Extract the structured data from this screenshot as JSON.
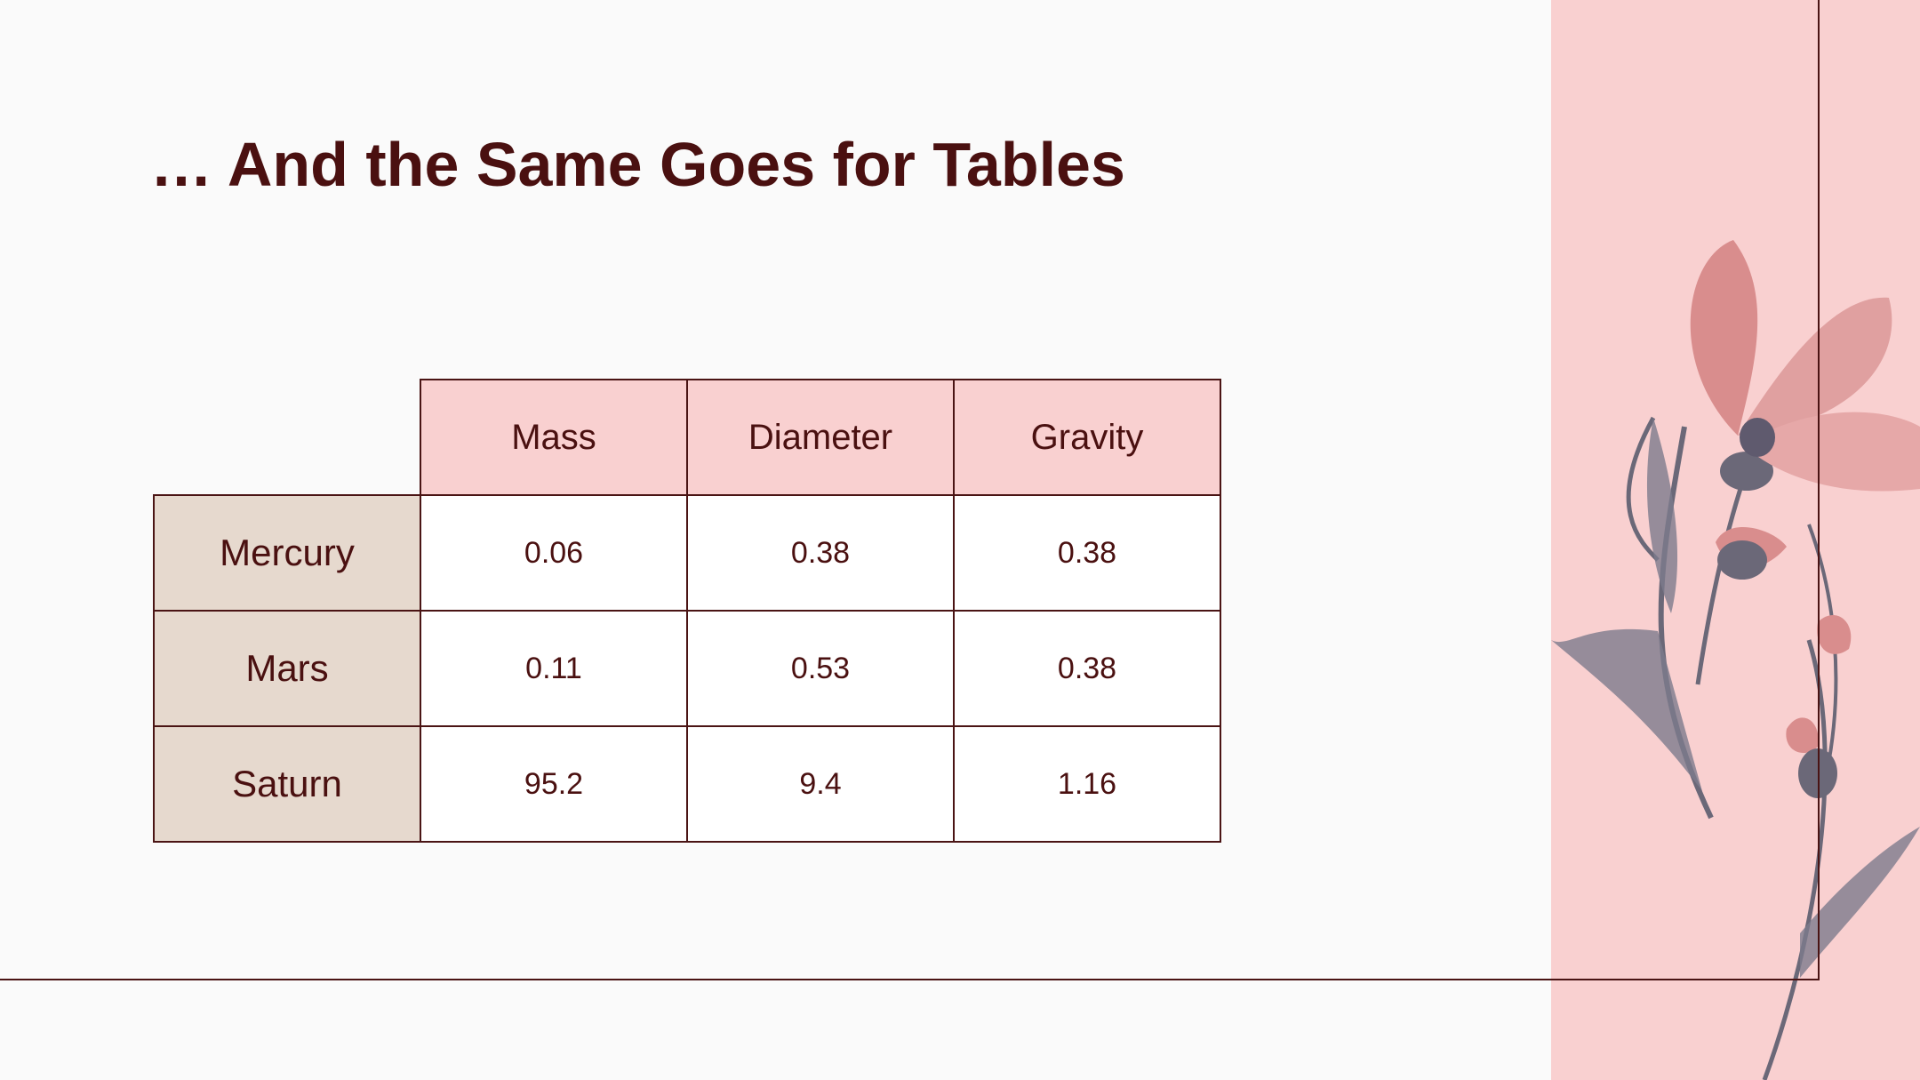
{
  "header": {
    "title": "… And the Same Goes for Tables"
  },
  "table": {
    "columns": [
      "Mass",
      "Diameter",
      "Gravity"
    ],
    "rows": [
      [
        "Mercury",
        "0.06",
        "0.38",
        "0.38"
      ],
      [
        "Mars",
        "0.11",
        "0.53",
        "0.38"
      ],
      [
        "Saturn",
        "95.2",
        "9.4",
        "1.16"
      ]
    ]
  }
}
